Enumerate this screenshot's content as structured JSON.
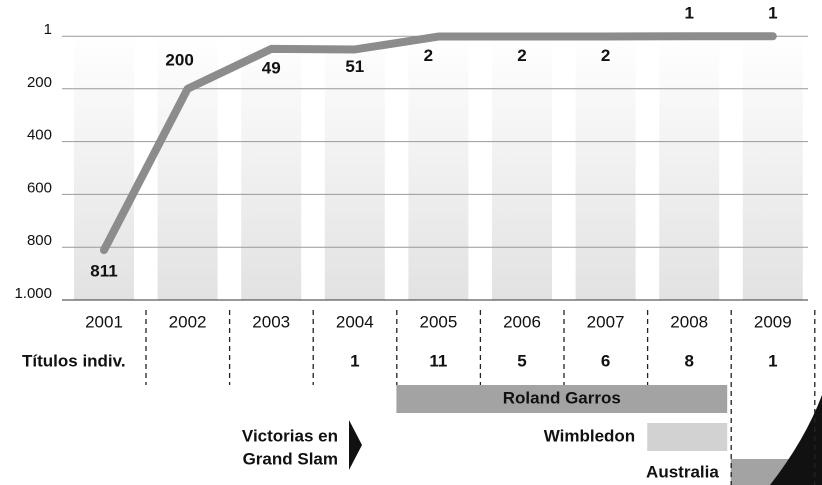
{
  "chart_data": {
    "type": "line",
    "x": [
      2001,
      2002,
      2003,
      2004,
      2005,
      2006,
      2007,
      2008,
      2009
    ],
    "values": [
      811,
      200,
      49,
      51,
      2,
      2,
      2,
      1,
      1
    ],
    "color": "#8c8c8c",
    "ylim": [
      0,
      1000
    ],
    "y_inverted": true,
    "yticks": [
      1,
      200,
      400,
      600,
      800,
      {
        "value": 1000,
        "label": "1.000"
      }
    ],
    "grid": true
  },
  "titles_row": {
    "label": "Títulos indiv.",
    "values": [
      null,
      null,
      null,
      1,
      11,
      5,
      6,
      8,
      1
    ]
  },
  "grand_slam": {
    "label_lines": [
      "Victorias en",
      "Grand Slam"
    ],
    "bars": [
      {
        "name": "Roland Garros",
        "start": 2005,
        "end": 2008,
        "color": "#a3a3a3"
      },
      {
        "name": "Wimbledon",
        "start": 2008,
        "end": 2008,
        "color": "#d2d2d2"
      },
      {
        "name": "Australia",
        "start": 2009,
        "end": 2009,
        "color": "#a3a3a3"
      }
    ]
  }
}
